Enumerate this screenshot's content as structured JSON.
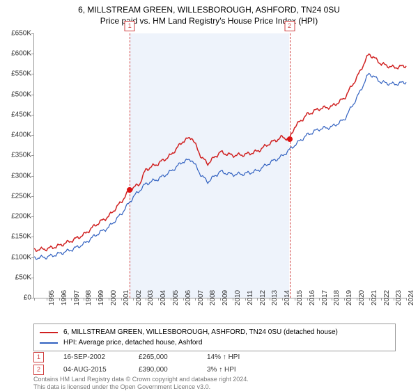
{
  "title_line1": "6, MILLSTREAM GREEN, WILLESBOROUGH, ASHFORD, TN24 0SU",
  "title_line2": "Price paid vs. HM Land Registry's House Price Index (HPI)",
  "chart": {
    "type": "line",
    "background_color": "#ffffff",
    "band_color": "#eef3fb",
    "band_edge_color": "#d04040",
    "x": {
      "min": 1995,
      "max": 2025,
      "ticks": [
        1995,
        1996,
        1997,
        1998,
        1999,
        2000,
        2001,
        2002,
        2003,
        2004,
        2005,
        2006,
        2007,
        2008,
        2009,
        2010,
        2011,
        2012,
        2013,
        2014,
        2015,
        2016,
        2017,
        2018,
        2019,
        2020,
        2021,
        2022,
        2023,
        2024,
        2025
      ]
    },
    "y": {
      "min": 0,
      "max": 650000,
      "tick_step": 50000,
      "tick_labels": [
        "£0",
        "£50K",
        "£100K",
        "£150K",
        "£200K",
        "£250K",
        "£300K",
        "£350K",
        "£400K",
        "£450K",
        "£500K",
        "£550K",
        "£600K",
        "£650K"
      ]
    },
    "band": {
      "from_year": 2002.71,
      "to_year": 2015.59
    },
    "series": [
      {
        "name": "subject",
        "label": "6, MILLSTREAM GREEN, WILLESBOROUGH, ASHFORD, TN24 0SU (detached house)",
        "color": "#d02020",
        "line_width": 1.5,
        "points": [
          [
            1995,
            118000
          ],
          [
            1996,
            120000
          ],
          [
            1997,
            128000
          ],
          [
            1998,
            140000
          ],
          [
            1999,
            155000
          ],
          [
            2000,
            180000
          ],
          [
            2001,
            200000
          ],
          [
            2002,
            235000
          ],
          [
            2002.71,
            265000
          ],
          [
            2003.5,
            280000
          ],
          [
            2004,
            315000
          ],
          [
            2005,
            330000
          ],
          [
            2006,
            350000
          ],
          [
            2007,
            385000
          ],
          [
            2007.7,
            395000
          ],
          [
            2008.5,
            345000
          ],
          [
            2009,
            330000
          ],
          [
            2010,
            358000
          ],
          [
            2011,
            350000
          ],
          [
            2012,
            352000
          ],
          [
            2013,
            360000
          ],
          [
            2014,
            380000
          ],
          [
            2015,
            395000
          ],
          [
            2015.59,
            390000
          ],
          [
            2016,
            420000
          ],
          [
            2017,
            450000
          ],
          [
            2018,
            465000
          ],
          [
            2019,
            470000
          ],
          [
            2020,
            490000
          ],
          [
            2021,
            540000
          ],
          [
            2022,
            600000
          ],
          [
            2023,
            575000
          ],
          [
            2024,
            566000
          ],
          [
            2025,
            570000
          ]
        ]
      },
      {
        "name": "hpi",
        "label": "HPI: Average price, detached house, Ashford",
        "color": "#3060c0",
        "line_width": 1.2,
        "points": [
          [
            1995,
            98000
          ],
          [
            1996,
            100000
          ],
          [
            1997,
            108000
          ],
          [
            1998,
            118000
          ],
          [
            1999,
            132000
          ],
          [
            2000,
            155000
          ],
          [
            2001,
            173000
          ],
          [
            2002,
            205000
          ],
          [
            2003,
            248000
          ],
          [
            2004,
            280000
          ],
          [
            2005,
            292000
          ],
          [
            2006,
            310000
          ],
          [
            2007,
            335000
          ],
          [
            2007.7,
            340000
          ],
          [
            2008.5,
            300000
          ],
          [
            2009,
            285000
          ],
          [
            2010,
            310000
          ],
          [
            2011,
            303000
          ],
          [
            2012,
            305000
          ],
          [
            2013,
            312000
          ],
          [
            2014,
            332000
          ],
          [
            2015,
            348000
          ],
          [
            2016,
            375000
          ],
          [
            2017,
            400000
          ],
          [
            2018,
            415000
          ],
          [
            2019,
            420000
          ],
          [
            2020,
            438000
          ],
          [
            2021,
            490000
          ],
          [
            2022,
            552000
          ],
          [
            2023,
            530000
          ],
          [
            2024,
            525000
          ],
          [
            2025,
            530000
          ]
        ]
      }
    ],
    "sale_markers": [
      {
        "n": "1",
        "year": 2002.71,
        "value": 265000
      },
      {
        "n": "2",
        "year": 2015.59,
        "value": 390000
      }
    ]
  },
  "legend": {
    "rows": [
      {
        "color": "#d02020",
        "label_path": "chart.series.0.label"
      },
      {
        "color": "#3060c0",
        "label_path": "chart.series.1.label"
      }
    ]
  },
  "sales": [
    {
      "n": "1",
      "date": "16-SEP-2002",
      "price": "£265,000",
      "hpi": "14% ↑ HPI"
    },
    {
      "n": "2",
      "date": "04-AUG-2015",
      "price": "£390,000",
      "hpi": "3% ↑ HPI"
    }
  ],
  "footnote_line1": "Contains HM Land Registry data © Crown copyright and database right 2024.",
  "footnote_line2": "This data is licensed under the Open Government Licence v3.0."
}
